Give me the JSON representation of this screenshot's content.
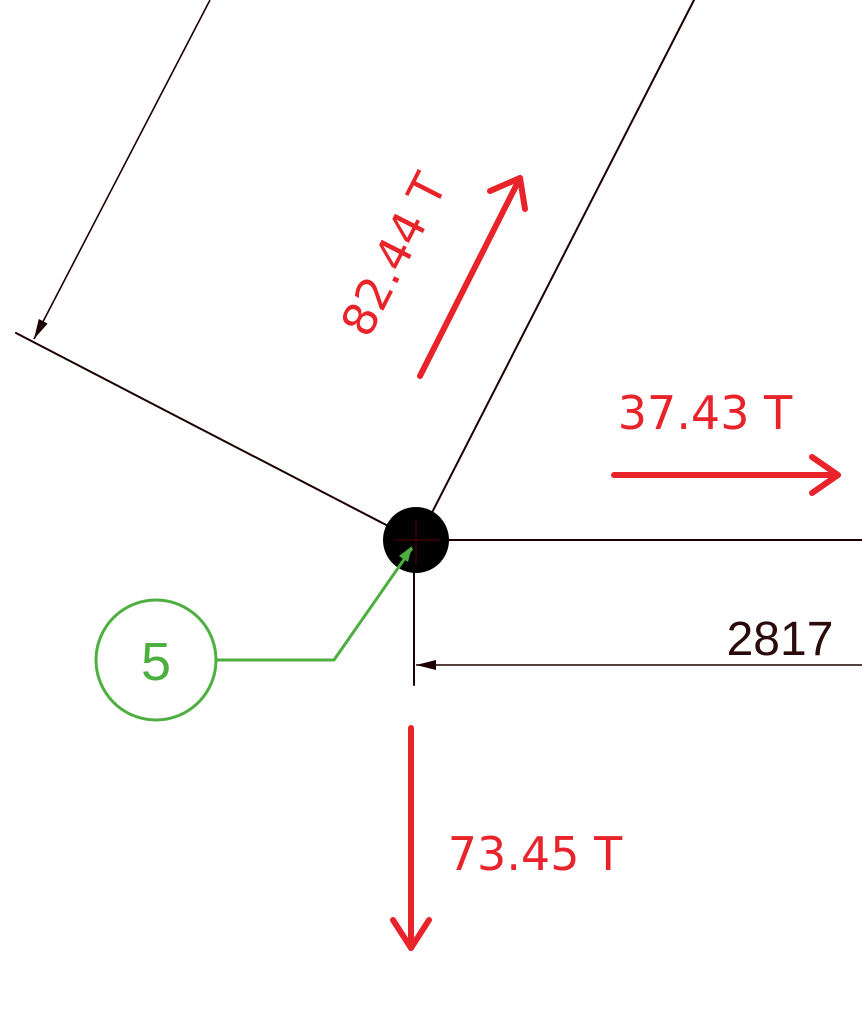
{
  "diagram": {
    "colors": {
      "member_line": "#1a0000",
      "force": "#e8232a",
      "node_marker": "#4caf3f",
      "joint": "#000000",
      "dimension_text": "#2a0a0a"
    },
    "node": {
      "number": "5"
    },
    "forces": [
      {
        "id": "diagonal-member-force",
        "label": "82.44 T",
        "direction": "up-right along member"
      },
      {
        "id": "horizontal-force",
        "label": "37.43 T",
        "direction": "right"
      },
      {
        "id": "vertical-force",
        "label": "73.45 T",
        "direction": "down"
      }
    ],
    "dimension": {
      "value": "2817"
    }
  }
}
